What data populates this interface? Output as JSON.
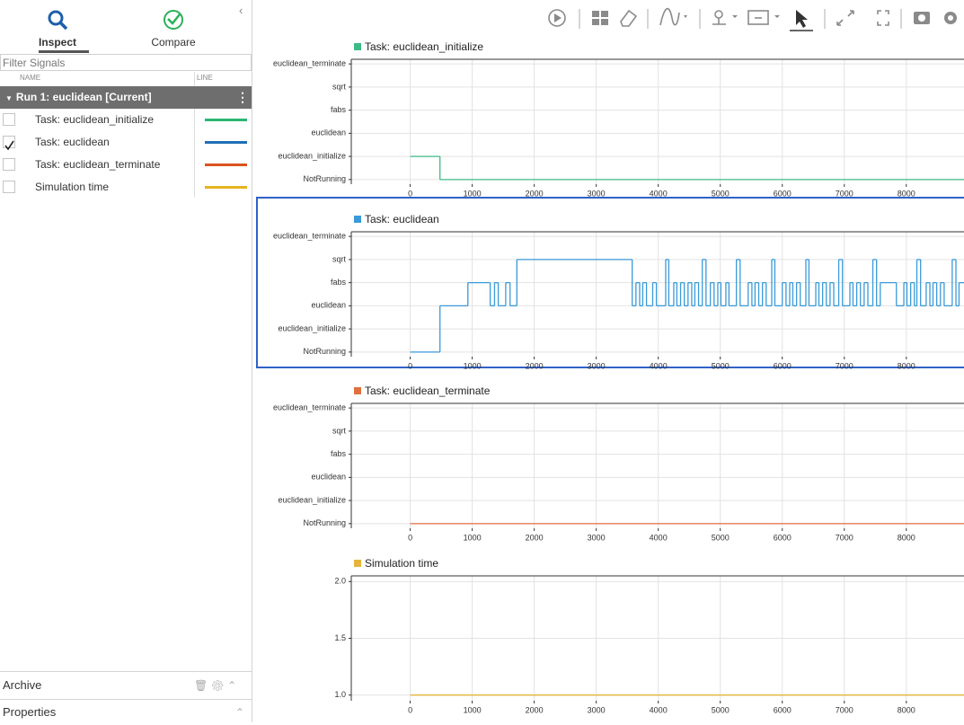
{
  "sidebar": {
    "tabs": [
      "Inspect",
      "Compare"
    ],
    "filter_placeholder": "Filter Signals",
    "columns": [
      "NAME",
      "LINE"
    ],
    "run": "Run 1: euclidean [Current]",
    "signals": [
      {
        "name": "Task: euclidean_initialize",
        "checked": false,
        "color": "#2bb673"
      },
      {
        "name": "Task: euclidean",
        "checked": true,
        "color": "#1f6fb5"
      },
      {
        "name": "Task: euclidean_terminate",
        "checked": false,
        "color": "#d9541e"
      },
      {
        "name": "Simulation time",
        "checked": false,
        "color": "#e6b422"
      }
    ],
    "archive": "Archive",
    "properties": "Properties"
  },
  "chart_data": [
    {
      "type": "step",
      "title": "Task: euclidean_initialize",
      "color": "#3dba85",
      "x": [
        0,
        480
      ],
      "values": [
        1,
        0
      ],
      "xlim": [
        -950,
        8930
      ],
      "xticks": [
        0,
        1000,
        2000,
        3000,
        4000,
        5000,
        6000,
        7000,
        8000
      ],
      "ylim": [
        -0.2,
        5.2
      ],
      "yticks": [
        {
          "value": 0,
          "label": "NotRunning"
        },
        {
          "value": 1,
          "label": "euclidean_initialize"
        },
        {
          "value": 2,
          "label": "euclidean"
        },
        {
          "value": 3,
          "label": "fabs"
        },
        {
          "value": 4,
          "label": "sqrt"
        },
        {
          "value": 5,
          "label": "euclidean_terminate"
        }
      ],
      "grid": true,
      "selected": false
    },
    {
      "type": "step",
      "title": "Task: euclidean",
      "color": "#3a9ad9",
      "x": [
        0,
        480,
        930,
        1290,
        1360,
        1420,
        1540,
        1610,
        1720,
        3580,
        3640,
        3700,
        3750,
        3810,
        3910,
        3970,
        4120,
        4170,
        4250,
        4300,
        4360,
        4420,
        4480,
        4540,
        4590,
        4650,
        4710,
        4770,
        4840,
        4900,
        4960,
        5010,
        5090,
        5140,
        5260,
        5320,
        5450,
        5510,
        5560,
        5620,
        5680,
        5740,
        5830,
        5880,
        6000,
        6060,
        6120,
        6170,
        6230,
        6290,
        6380,
        6430,
        6540,
        6590,
        6650,
        6710,
        6770,
        6830,
        6910,
        6970,
        7090,
        7140,
        7200,
        7260,
        7320,
        7380,
        7460,
        7520,
        7580,
        7840,
        7960,
        8010,
        8070,
        8130,
        8170,
        8230,
        8320,
        8380,
        8430,
        8490,
        8550,
        8610,
        8740,
        8800,
        8850
      ],
      "values": [
        0,
        2,
        3,
        2,
        3,
        2,
        3,
        2,
        4,
        2,
        3,
        2,
        3,
        2,
        3,
        2,
        4,
        2,
        3,
        2,
        3,
        2,
        3,
        2,
        3,
        2,
        4,
        2,
        3,
        2,
        3,
        2,
        3,
        2,
        4,
        2,
        3,
        2,
        3,
        2,
        3,
        2,
        4,
        2,
        3,
        2,
        3,
        2,
        3,
        2,
        4,
        2,
        3,
        2,
        3,
        2,
        3,
        2,
        4,
        2,
        3,
        2,
        3,
        2,
        3,
        2,
        4,
        2,
        3,
        2,
        3,
        2,
        3,
        2,
        4,
        2,
        3,
        2,
        3,
        2,
        3,
        2,
        4,
        2,
        3
      ],
      "xlim": [
        -950,
        8930
      ],
      "xticks": [
        0,
        1000,
        2000,
        3000,
        4000,
        5000,
        6000,
        7000,
        8000
      ],
      "ylim": [
        -0.2,
        5.2
      ],
      "yticks": [
        {
          "value": 0,
          "label": "NotRunning"
        },
        {
          "value": 1,
          "label": "euclidean_initialize"
        },
        {
          "value": 2,
          "label": "euclidean"
        },
        {
          "value": 3,
          "label": "fabs"
        },
        {
          "value": 4,
          "label": "sqrt"
        },
        {
          "value": 5,
          "label": "euclidean_terminate"
        }
      ],
      "grid": true,
      "selected": true
    },
    {
      "type": "step",
      "title": "Task: euclidean_terminate",
      "color": "#e07040",
      "x": [
        0
      ],
      "values": [
        0
      ],
      "xlim": [
        -950,
        8930
      ],
      "xticks": [
        0,
        1000,
        2000,
        3000,
        4000,
        5000,
        6000,
        7000,
        8000
      ],
      "ylim": [
        -0.2,
        5.2
      ],
      "yticks": [
        {
          "value": 0,
          "label": "NotRunning"
        },
        {
          "value": 1,
          "label": "euclidean_initialize"
        },
        {
          "value": 2,
          "label": "euclidean"
        },
        {
          "value": 3,
          "label": "fabs"
        },
        {
          "value": 4,
          "label": "sqrt"
        },
        {
          "value": 5,
          "label": "euclidean_terminate"
        }
      ],
      "grid": true,
      "selected": false
    },
    {
      "type": "step",
      "title": "Simulation time",
      "color": "#e6b43c",
      "x": [
        0
      ],
      "values": [
        1
      ],
      "xlim": [
        -950,
        8930
      ],
      "xticks": [
        0,
        1000,
        2000,
        3000,
        4000,
        5000,
        6000,
        7000,
        8000
      ],
      "ylim": [
        0.95,
        2.05
      ],
      "yticks": [
        {
          "value": 1,
          "label": "1.0"
        },
        {
          "value": 1.5,
          "label": "1.5"
        },
        {
          "value": 2,
          "label": "2.0"
        }
      ],
      "grid": true,
      "selected": false
    }
  ]
}
